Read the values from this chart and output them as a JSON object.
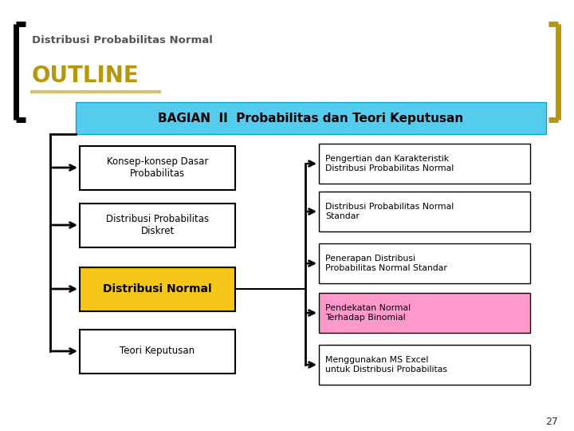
{
  "title": "Distribusi Probabilitas Normal",
  "outline_text": "OUTLINE",
  "header_text": "BAGIAN  II  Probabilitas dan Teori Keputusan",
  "header_bg": "#55CCEE",
  "header_border": "#00AACC",
  "left_boxes": [
    {
      "text": "Konsep-konsep Dasar\nProbabilitas",
      "bg": "#FFFFFF",
      "border": "#000000",
      "bold": false
    },
    {
      "text": "Distribusi Probabilitas\nDiskret",
      "bg": "#FFFFFF",
      "border": "#000000",
      "bold": false
    },
    {
      "text": "Distribusi Normal",
      "bg": "#F5C518",
      "border": "#000000",
      "bold": true
    },
    {
      "text": "Teori Keputusan",
      "bg": "#FFFFFF",
      "border": "#000000",
      "bold": false
    }
  ],
  "right_boxes": [
    {
      "text": "Pengertian dan Karakteristik\nDistribusi Probabilitas Normal",
      "bg": "#FFFFFF",
      "border": "#000000"
    },
    {
      "text": "Distribusi Probabilitas Normal\nStandar",
      "bg": "#FFFFFF",
      "border": "#000000"
    },
    {
      "text": "Penerapan Distribusi\nProbabilitas Normal Standar",
      "bg": "#FFFFFF",
      "border": "#000000"
    },
    {
      "text": "Pendekatan Normal\nTerhadap Binomial",
      "bg": "#FF99CC",
      "border": "#000000"
    },
    {
      "text": "Menggunakan MS Excel\nuntuk Distribusi Probabilitas",
      "bg": "#FFFFFF",
      "border": "#000000"
    }
  ],
  "bg_color": "#FFFFFF",
  "outline_color": "#B8960C",
  "title_color": "#555555",
  "outline_text_color": "#B8960C",
  "page_number": "27",
  "bracket_color_left": "#000000",
  "bracket_color_right": "#B8960C",
  "underline_color": "#D4C070"
}
